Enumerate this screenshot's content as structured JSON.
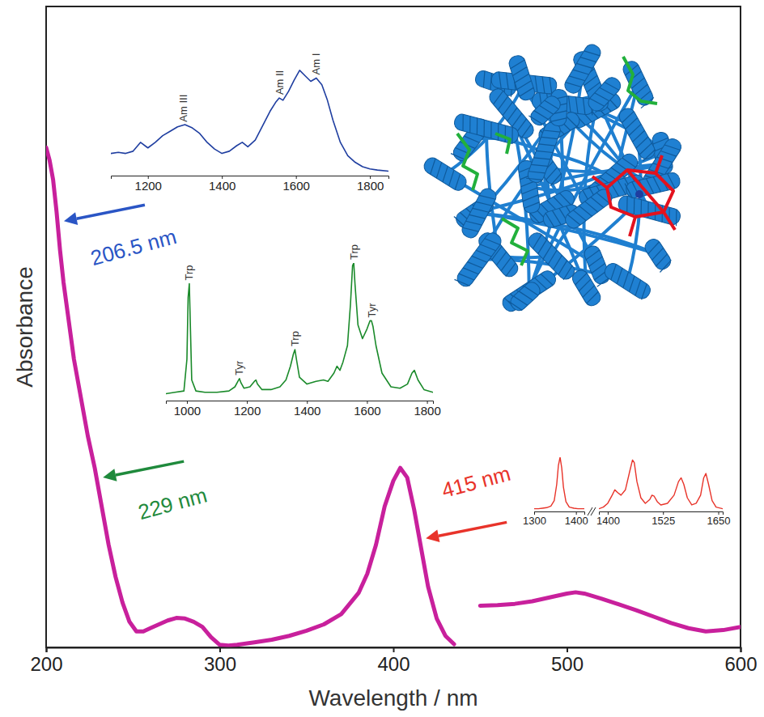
{
  "chart_data": [
    {
      "type": "line",
      "x": [
        200,
        202,
        204,
        206,
        208,
        210,
        213,
        216,
        220,
        224,
        228,
        232,
        236,
        240,
        244,
        248,
        252,
        256,
        260,
        265,
        270,
        275,
        280,
        285,
        290,
        295,
        300,
        305,
        310,
        320,
        330,
        340,
        350,
        360,
        370,
        380,
        385,
        390,
        395,
        400,
        404,
        408,
        412,
        416,
        420,
        425,
        430,
        435,
        440,
        450,
        460,
        470,
        480,
        490,
        500,
        505,
        510,
        520,
        530,
        540,
        550,
        560,
        570,
        580,
        590,
        600
      ],
      "values": [
        0.78,
        0.76,
        0.73,
        0.68,
        0.62,
        0.57,
        0.51,
        0.45,
        0.39,
        0.33,
        0.28,
        0.22,
        0.16,
        0.11,
        0.07,
        0.04,
        0.025,
        0.025,
        0.03,
        0.036,
        0.042,
        0.046,
        0.045,
        0.04,
        0.032,
        0.016,
        0.004,
        0.003,
        0.004,
        0.008,
        0.012,
        0.018,
        0.026,
        0.036,
        0.052,
        0.085,
        0.115,
        0.16,
        0.22,
        0.26,
        0.28,
        0.265,
        0.215,
        0.155,
        0.095,
        0.045,
        0.018,
        0.005,
        null,
        0.065,
        0.066,
        0.068,
        0.072,
        0.078,
        0.084,
        0.086,
        0.084,
        0.076,
        0.067,
        0.058,
        0.048,
        0.038,
        0.03,
        0.025,
        0.027,
        0.032
      ],
      "color": "#c8209c",
      "xlim": [
        200,
        600
      ],
      "xticks": [
        200,
        300,
        400,
        500,
        600
      ],
      "ylim": [
        0,
        1
      ],
      "yticks": [],
      "tick_labels": "x",
      "xlabel": "Wavelength / nm",
      "ylabel": "Absorbance",
      "annotations": [
        {
          "text": "206.5 nm",
          "x": 206.5,
          "color": "#2a55c5"
        },
        {
          "text": "229 nm",
          "x": 229,
          "color": "#1f8a3c"
        },
        {
          "text": "415 nm",
          "x": 415,
          "color": "#e8332a"
        }
      ]
    },
    {
      "type": "line",
      "x": [
        1100,
        1120,
        1140,
        1160,
        1180,
        1200,
        1220,
        1240,
        1260,
        1280,
        1300,
        1320,
        1340,
        1360,
        1380,
        1400,
        1420,
        1440,
        1455,
        1470,
        1490,
        1510,
        1530,
        1545,
        1555,
        1565,
        1580,
        1595,
        1610,
        1625,
        1640,
        1655,
        1670,
        1685,
        1700,
        1720,
        1740,
        1760,
        1780,
        1800,
        1820,
        1850
      ],
      "values": [
        0.2,
        0.21,
        0.2,
        0.22,
        0.3,
        0.25,
        0.3,
        0.36,
        0.4,
        0.44,
        0.46,
        0.43,
        0.38,
        0.3,
        0.24,
        0.2,
        0.22,
        0.27,
        0.3,
        0.26,
        0.32,
        0.45,
        0.58,
        0.66,
        0.7,
        0.68,
        0.76,
        0.86,
        0.95,
        0.9,
        0.85,
        0.88,
        0.82,
        0.68,
        0.5,
        0.3,
        0.18,
        0.12,
        0.08,
        0.06,
        0.05,
        0.04
      ],
      "color": "#1f3ea0",
      "xlim": [
        1100,
        1850
      ],
      "xticks": [
        1200,
        1400,
        1600,
        1800
      ],
      "ylim": [
        0,
        1
      ],
      "yticks": [],
      "tick_labels": "x",
      "annotations": [
        {
          "text": "Am III",
          "x": 1295
        },
        {
          "text": "Am II",
          "x": 1555
        },
        {
          "text": "Am I",
          "x": 1655
        }
      ]
    },
    {
      "type": "line",
      "x": [
        930,
        960,
        990,
        1000,
        1004,
        1008,
        1012,
        1016,
        1030,
        1060,
        1100,
        1140,
        1160,
        1170,
        1175,
        1180,
        1190,
        1210,
        1225,
        1230,
        1235,
        1250,
        1280,
        1310,
        1330,
        1345,
        1355,
        1360,
        1365,
        1375,
        1400,
        1430,
        1455,
        1470,
        1490,
        1500,
        1510,
        1520,
        1535,
        1545,
        1552,
        1556,
        1560,
        1570,
        1585,
        1600,
        1610,
        1615,
        1620,
        1630,
        1650,
        1680,
        1710,
        1735,
        1750,
        1758,
        1770,
        1790,
        1820
      ],
      "values": [
        0.05,
        0.06,
        0.07,
        0.3,
        0.75,
        0.85,
        0.5,
        0.15,
        0.07,
        0.06,
        0.06,
        0.07,
        0.1,
        0.14,
        0.16,
        0.13,
        0.09,
        0.1,
        0.14,
        0.15,
        0.12,
        0.08,
        0.08,
        0.1,
        0.15,
        0.25,
        0.34,
        0.37,
        0.3,
        0.17,
        0.12,
        0.14,
        0.15,
        0.14,
        0.2,
        0.25,
        0.22,
        0.28,
        0.4,
        0.7,
        0.98,
        1.0,
        0.85,
        0.55,
        0.45,
        0.52,
        0.58,
        0.58,
        0.54,
        0.4,
        0.2,
        0.1,
        0.09,
        0.12,
        0.2,
        0.22,
        0.15,
        0.08,
        0.06
      ],
      "color": "#1a8a2a",
      "xlim": [
        930,
        1820
      ],
      "xticks": [
        1000,
        1200,
        1400,
        1600,
        1800
      ],
      "ylim": [
        0,
        1
      ],
      "yticks": [],
      "tick_labels": "x",
      "annotations": [
        {
          "text": "Trp",
          "x": 1008
        },
        {
          "text": "Tyr",
          "x": 1175
        },
        {
          "text": "Trp",
          "x": 1360
        },
        {
          "text": "Trp",
          "x": 1556
        },
        {
          "text": "Tyr",
          "x": 1615
        }
      ]
    },
    {
      "type": "line",
      "x": [
        1300,
        1310,
        1320,
        1330,
        1340,
        1348,
        1354,
        1358,
        1362,
        1366,
        1370,
        1376,
        1384,
        1395,
        1405,
        1420
      ],
      "values": [
        0.05,
        0.05,
        0.06,
        0.07,
        0.1,
        0.2,
        0.5,
        0.85,
        1.0,
        0.8,
        0.45,
        0.18,
        0.08,
        0.06,
        0.05,
        0.05
      ],
      "color": "#e8342a",
      "xlim": [
        1300,
        1420
      ],
      "xticks": [
        1300,
        1400
      ],
      "ylim": [
        0,
        1
      ],
      "yticks": [],
      "tick_labels": "x"
    },
    {
      "type": "line",
      "x": [
        1380,
        1390,
        1400,
        1410,
        1416,
        1422,
        1430,
        1440,
        1450,
        1456,
        1460,
        1466,
        1475,
        1485,
        1495,
        1500,
        1505,
        1512,
        1520,
        1535,
        1550,
        1560,
        1566,
        1572,
        1580,
        1590,
        1600,
        1610,
        1617,
        1622,
        1628,
        1636,
        1645,
        1660
      ],
      "values": [
        0.05,
        0.08,
        0.15,
        0.3,
        0.4,
        0.35,
        0.3,
        0.4,
        0.75,
        0.95,
        0.9,
        0.55,
        0.25,
        0.15,
        0.22,
        0.3,
        0.28,
        0.18,
        0.12,
        0.15,
        0.3,
        0.55,
        0.62,
        0.5,
        0.25,
        0.12,
        0.15,
        0.3,
        0.62,
        0.7,
        0.5,
        0.2,
        0.08,
        0.05
      ],
      "color": "#e8342a",
      "xlim": [
        1380,
        1660
      ],
      "xticks": [
        1400,
        1525,
        1650
      ],
      "ylim": [
        0,
        1
      ],
      "yticks": [],
      "tick_labels": "x"
    }
  ]
}
